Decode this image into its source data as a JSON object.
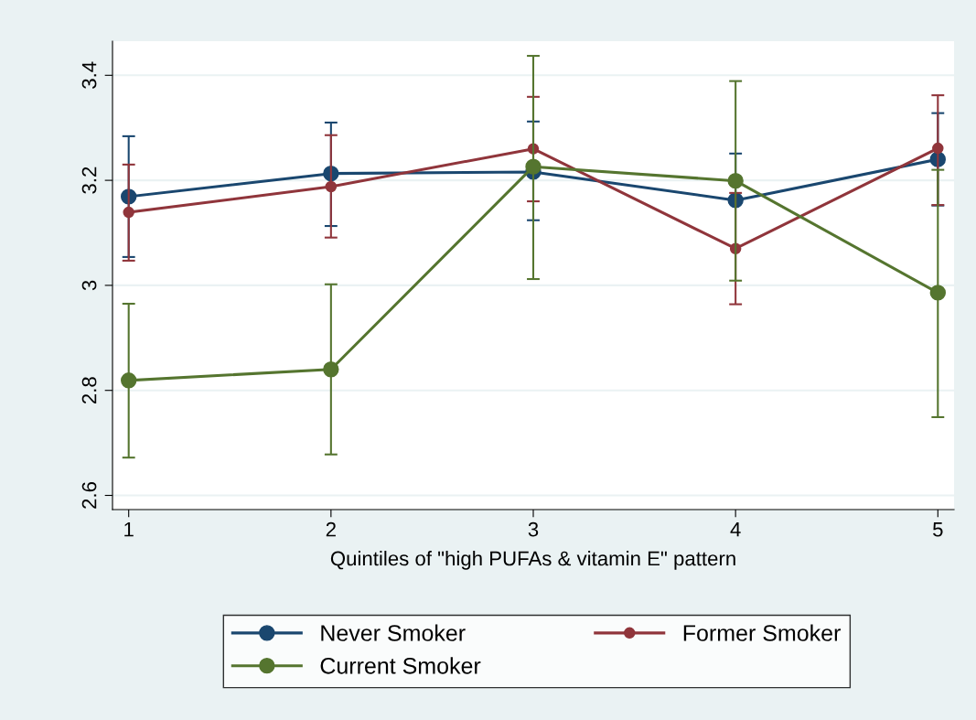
{
  "chart_data": {
    "type": "line",
    "xlabel": "Quintiles of \"high PUFAs & vitamin E\" pattern",
    "x": [
      1,
      2,
      3,
      4,
      5
    ],
    "series": [
      {
        "name": "Never Smoker",
        "color": "#1a476f",
        "values": [
          3.169,
          3.213,
          3.216,
          3.162,
          3.24
        ],
        "errors": [
          [
            3.054,
            3.284
          ],
          [
            3.113,
            3.31
          ],
          [
            3.124,
            3.312
          ],
          [
            3.162,
            3.251
          ],
          [
            3.152,
            3.328
          ]
        ]
      },
      {
        "name": "Former Smoker",
        "color": "#90353b",
        "values": [
          3.139,
          3.188,
          3.26,
          3.07,
          3.261
        ],
        "errors": [
          [
            3.047,
            3.23
          ],
          [
            3.091,
            3.286
          ],
          [
            3.16,
            3.359
          ],
          [
            2.964,
            3.176
          ],
          [
            3.153,
            3.362
          ]
        ]
      },
      {
        "name": "Current Smoker",
        "color": "#55752f",
        "values": [
          2.819,
          2.84,
          3.226,
          3.199,
          2.986
        ],
        "errors": [
          [
            2.672,
            2.965
          ],
          [
            2.678,
            3.002
          ],
          [
            3.012,
            3.437
          ],
          [
            3.009,
            3.389
          ],
          [
            2.749,
            3.22
          ]
        ]
      }
    ],
    "xlim": [
      0.92,
      5.08
    ],
    "xticks": [
      1,
      2,
      3,
      4,
      5
    ],
    "ylim": [
      2.573,
      3.465
    ],
    "yticks": [
      2.6,
      2.8,
      3,
      3.2,
      3.4
    ],
    "grid": "y",
    "legend": "bottom",
    "marker": "circle",
    "line_style": "solid"
  }
}
